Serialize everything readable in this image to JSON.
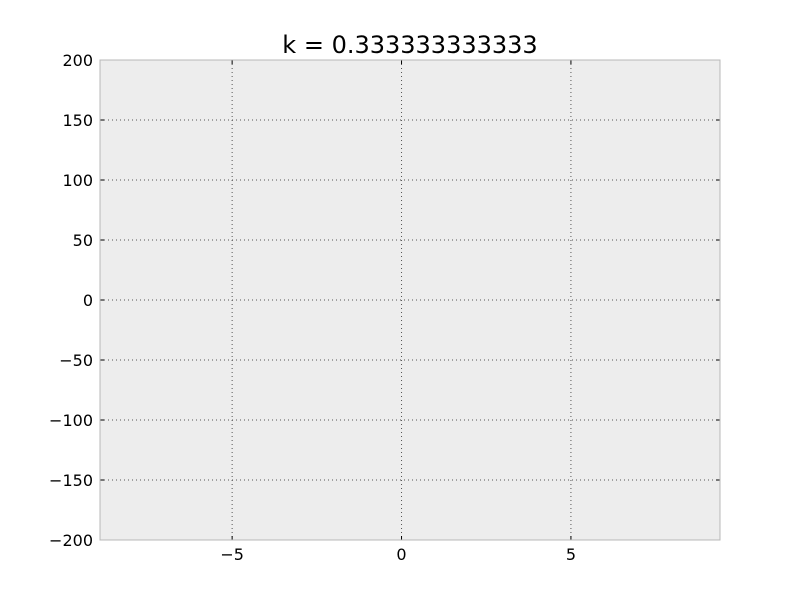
{
  "chart_data": {
    "type": "line",
    "title": "k = 0.333333333333",
    "xlabel": "",
    "ylabel": "",
    "xlim": [
      -8.9,
      9.4
    ],
    "ylim": [
      -200,
      200
    ],
    "xticks": [
      -5,
      0,
      5
    ],
    "xtick_labels": [
      "−5",
      "0",
      "5"
    ],
    "yticks": [
      -200,
      -150,
      -100,
      -50,
      0,
      50,
      100,
      150,
      200
    ],
    "ytick_labels": [
      "−200",
      "−150",
      "−100",
      "−50",
      "0",
      "50",
      "100",
      "150",
      "200"
    ],
    "grid": true,
    "legend": "none",
    "series": []
  },
  "colors": {
    "plot_background": "#ededed",
    "axes_edge": "#b8b8b8",
    "grid": "#555555",
    "text": "#000000"
  }
}
